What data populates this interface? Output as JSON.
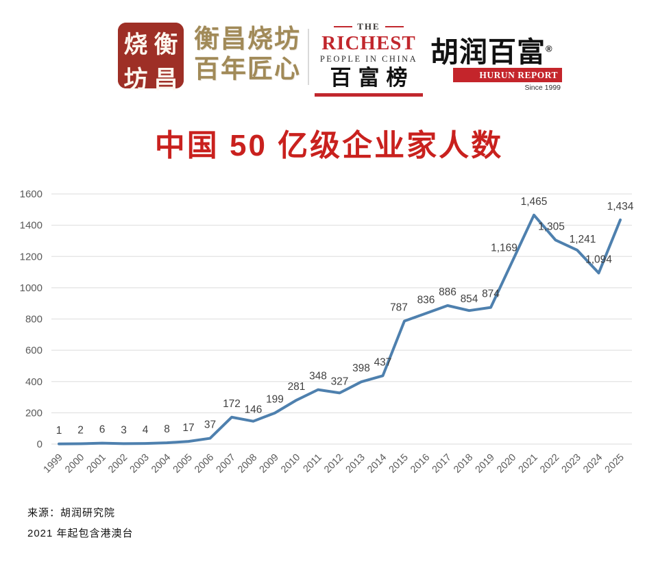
{
  "header": {
    "seal": {
      "chars": [
        "烧",
        "衡",
        "坊",
        "昌"
      ]
    },
    "brand": {
      "line1": "衡昌烧坊",
      "line2": "百年匠心"
    },
    "richest_logo": {
      "the": "THE",
      "name": "RICHEST",
      "subtitle": "PEOPLE IN CHINA",
      "cn": "百富榜"
    },
    "hurun_logo": {
      "cn": "胡润百富",
      "reg": "®",
      "en": "HURUN REPORT",
      "since": "Since 1999"
    }
  },
  "title": "中国 50 亿级企业家人数",
  "footer": {
    "source": "来源：胡润研究院",
    "note": "2021 年起包含港澳台"
  },
  "colors": {
    "accent_red": "#c9211e",
    "seal_red": "#9e2f26",
    "brand_gold": "#a18a58",
    "hurun_red": "#c4252b",
    "line_blue": "#4e80ae",
    "grid_gray": "#e2e2e2",
    "tick_gray": "#595959",
    "label_gray": "#3f3f3f"
  },
  "chart_data": {
    "type": "line",
    "title": "中国 50 亿级企业家人数",
    "xlabel": "",
    "ylabel": "",
    "x": [
      "1999",
      "2000",
      "2001",
      "2002",
      "2003",
      "2004",
      "2005",
      "2006",
      "2007",
      "2008",
      "2009",
      "2010",
      "2011",
      "2012",
      "2013",
      "2014",
      "2015",
      "2016",
      "2017",
      "2018",
      "2019",
      "2020",
      "2021",
      "2022",
      "2023",
      "2024",
      "2025"
    ],
    "values": [
      1,
      2,
      6,
      3,
      4,
      8,
      17,
      37,
      172,
      146,
      199,
      281,
      348,
      327,
      398,
      437,
      787,
      836,
      886,
      854,
      874,
      1169,
      1465,
      1305,
      1241,
      1094,
      1434
    ],
    "labels": [
      "1",
      "2",
      "6",
      "3",
      "4",
      "8",
      "17",
      "37",
      "172",
      "146",
      "199",
      "281",
      "348",
      "327",
      "398",
      "437",
      "787",
      "836",
      "886",
      "854",
      "874",
      "1,169",
      "1,465",
      "1,305",
      "1,241",
      "1,094",
      "1,434"
    ],
    "ylim": [
      0,
      1600
    ],
    "ytick_step": 200,
    "grid": true,
    "legend": "none"
  }
}
